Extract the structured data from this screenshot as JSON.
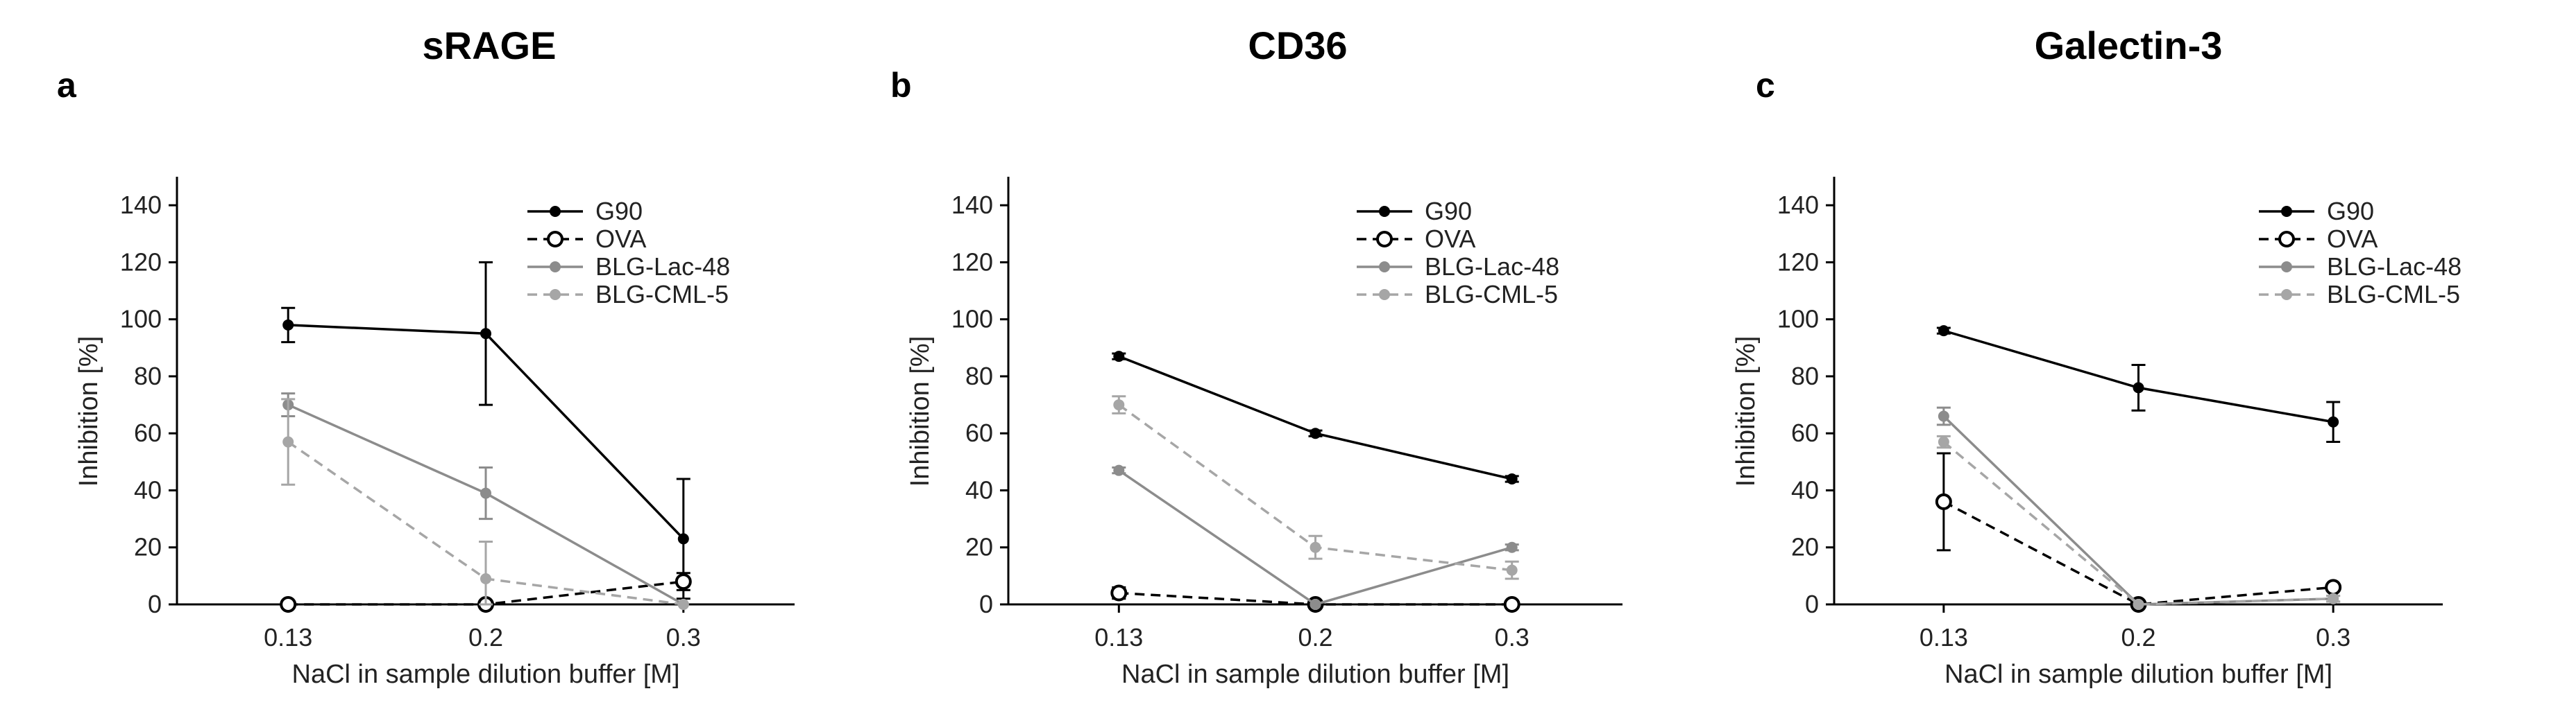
{
  "chart_data": [
    {
      "type": "line",
      "panel": "a",
      "title": "sRAGE",
      "xlabel": "NaCl in sample dilution buffer [M]",
      "ylabel": "Inhibition [%]",
      "categories": [
        "0.13",
        "0.2",
        "0.3"
      ],
      "ylim": [
        0,
        150
      ],
      "yticks": [
        0,
        20,
        40,
        60,
        80,
        100,
        120,
        140
      ],
      "legend": "top-right",
      "series": [
        {
          "name": "G90",
          "values": [
            98,
            95,
            23
          ],
          "errors": [
            6,
            25,
            21
          ],
          "color": "#000000",
          "marker": "filled",
          "dashed": false
        },
        {
          "name": "OVA",
          "values": [
            0,
            0,
            8
          ],
          "errors": [
            0,
            0,
            3
          ],
          "color": "#000000",
          "marker": "open",
          "dashed": true
        },
        {
          "name": "BLG-Lac-48",
          "values": [
            70,
            39,
            0
          ],
          "errors": [
            4,
            9,
            0
          ],
          "color": "#8c8c8c",
          "marker": "filled",
          "dashed": false
        },
        {
          "name": "BLG-CML-5",
          "values": [
            57,
            9,
            0
          ],
          "errors": [
            15,
            13,
            0
          ],
          "color": "#a6a6a6",
          "marker": "filled",
          "dashed": true
        }
      ]
    },
    {
      "type": "line",
      "panel": "b",
      "title": "CD36",
      "xlabel": "NaCl in sample dilution buffer [M]",
      "ylabel": "Inhibition [%]",
      "categories": [
        "0.13",
        "0.2",
        "0.3"
      ],
      "ylim": [
        0,
        150
      ],
      "yticks": [
        0,
        20,
        40,
        60,
        80,
        100,
        120,
        140
      ],
      "legend": "top-right",
      "series": [
        {
          "name": "G90",
          "values": [
            87,
            60,
            44
          ],
          "errors": [
            1,
            1,
            1
          ],
          "color": "#000000",
          "marker": "filled",
          "dashed": false
        },
        {
          "name": "OVA",
          "values": [
            4,
            0,
            0
          ],
          "errors": [
            2,
            0,
            0
          ],
          "color": "#000000",
          "marker": "open",
          "dashed": true
        },
        {
          "name": "BLG-Lac-48",
          "values": [
            47,
            0,
            20
          ],
          "errors": [
            1,
            0,
            1
          ],
          "color": "#8c8c8c",
          "marker": "filled",
          "dashed": false
        },
        {
          "name": "BLG-CML-5",
          "values": [
            70,
            20,
            12
          ],
          "errors": [
            3,
            4,
            3
          ],
          "color": "#a6a6a6",
          "marker": "filled",
          "dashed": true
        }
      ]
    },
    {
      "type": "line",
      "panel": "c",
      "title": "Galectin-3",
      "xlabel": "NaCl in sample dilution buffer [M]",
      "ylabel": "Inhibition [%]",
      "categories": [
        "0.13",
        "0.2",
        "0.3"
      ],
      "ylim": [
        0,
        150
      ],
      "yticks": [
        0,
        20,
        40,
        60,
        80,
        100,
        120,
        140
      ],
      "legend": "top-right",
      "series": [
        {
          "name": "G90",
          "values": [
            96,
            76,
            64
          ],
          "errors": [
            1,
            8,
            7
          ],
          "color": "#000000",
          "marker": "filled",
          "dashed": false
        },
        {
          "name": "OVA",
          "values": [
            36,
            0,
            6
          ],
          "errors": [
            17,
            0,
            1
          ],
          "color": "#000000",
          "marker": "open",
          "dashed": true
        },
        {
          "name": "BLG-Lac-48",
          "values": [
            66,
            0,
            2
          ],
          "errors": [
            3,
            0,
            1
          ],
          "color": "#8c8c8c",
          "marker": "filled",
          "dashed": false
        },
        {
          "name": "BLG-CML-5",
          "values": [
            57,
            0,
            2
          ],
          "errors": [
            2,
            0,
            1
          ],
          "color": "#a6a6a6",
          "marker": "filled",
          "dashed": true
        }
      ]
    }
  ]
}
